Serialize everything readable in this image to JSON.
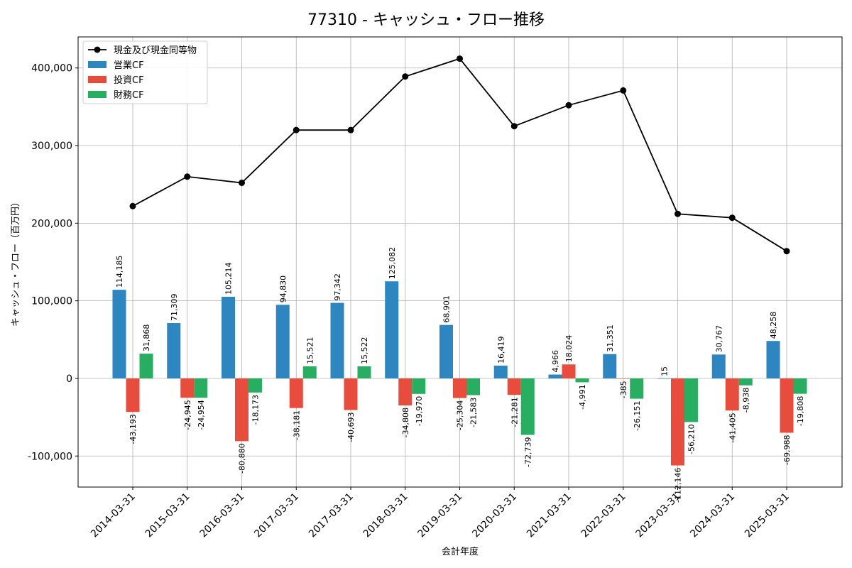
{
  "chart_data": {
    "type": "bar",
    "title": "77310 - キャッシュ・フロー推移",
    "xlabel": "会計年度",
    "ylabel": "キャッシュ・フロー（百万円）",
    "ylim": [
      -140000,
      440000
    ],
    "yticks": [
      -100000,
      0,
      100000,
      200000,
      300000,
      400000
    ],
    "ytick_labels": [
      "-100,000",
      "0",
      "100,000",
      "200,000",
      "300,000",
      "400,000"
    ],
    "grid": true,
    "legend_position": "top-left",
    "categories": [
      "2014-03-31",
      "2015-03-31",
      "2016-03-31",
      "2017-03-31",
      "2017-03-31",
      "2018-03-31",
      "2019-03-31",
      "2020-03-31",
      "2021-03-31",
      "2022-03-31",
      "2023-03-31",
      "2024-03-31",
      "2025-03-31"
    ],
    "series": [
      {
        "name": "現金及び現金同等物",
        "type": "line",
        "color": "#000000",
        "values": [
          222000,
          260000,
          252000,
          320000,
          320000,
          389000,
          412000,
          325000,
          352000,
          371000,
          212000,
          207000,
          164000
        ]
      },
      {
        "name": "営業CF",
        "type": "bar",
        "color": "#2e86c1",
        "values": [
          114185,
          71309,
          105214,
          94830,
          97342,
          125082,
          68901,
          16419,
          4966,
          31351,
          15,
          30767,
          48258
        ],
        "labels": [
          "114,185",
          "71,309",
          "105,214",
          "94,830",
          "97,342",
          "125,082",
          "68,901",
          "16,419",
          "4,966",
          "31,351",
          "15",
          "30,767",
          "48,258"
        ]
      },
      {
        "name": "投資CF",
        "type": "bar",
        "color": "#e74c3c",
        "values": [
          -43193,
          -24945,
          -80880,
          -38181,
          -40693,
          -34808,
          -25304,
          -21281,
          18024,
          -385,
          -112146,
          -41405,
          -69988
        ],
        "labels": [
          "-43,193",
          "-24,945",
          "-80,880",
          "-38,181",
          "-40,693",
          "-34,808",
          "-25,304",
          "-21,281",
          "18,024",
          "-385",
          "-112,146",
          "-41,405",
          "-69,988"
        ]
      },
      {
        "name": "財務CF",
        "type": "bar",
        "color": "#27ae60",
        "values": [
          31868,
          -24954,
          -18173,
          15521,
          15522,
          -19970,
          -21583,
          -72739,
          -4991,
          -26151,
          -56210,
          -8938,
          -19808
        ],
        "labels": [
          "31,868",
          "-24,954",
          "-18,173",
          "15,521",
          "15,522",
          "-19,970",
          "-21,583",
          "-72,739",
          "-4,991",
          "-26,151",
          "-56,210",
          "-8,938",
          "-19,808"
        ]
      }
    ]
  }
}
